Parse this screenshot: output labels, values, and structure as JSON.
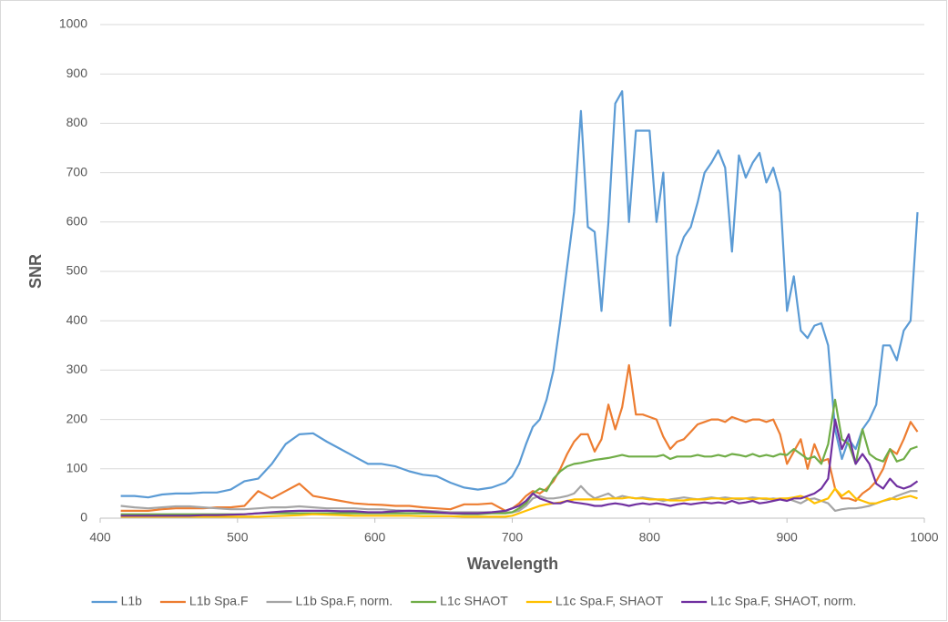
{
  "chart_data": {
    "type": "line",
    "xlabel": "Wavelength",
    "ylabel": "SNR",
    "x": [
      415,
      425,
      435,
      445,
      455,
      465,
      475,
      485,
      495,
      505,
      515,
      525,
      535,
      545,
      555,
      565,
      575,
      585,
      595,
      605,
      615,
      625,
      635,
      645,
      655,
      665,
      675,
      685,
      695,
      700,
      705,
      710,
      715,
      720,
      725,
      730,
      735,
      740,
      745,
      750,
      755,
      760,
      765,
      770,
      775,
      780,
      785,
      790,
      795,
      800,
      805,
      810,
      815,
      820,
      825,
      830,
      835,
      840,
      845,
      850,
      855,
      860,
      865,
      870,
      875,
      880,
      885,
      890,
      895,
      900,
      905,
      910,
      915,
      920,
      925,
      930,
      935,
      940,
      945,
      950,
      955,
      960,
      965,
      970,
      975,
      980,
      985,
      990,
      995
    ],
    "series": [
      {
        "name": "L1b",
        "color": "#5b9bd5",
        "values": [
          45,
          45,
          42,
          48,
          50,
          50,
          52,
          52,
          58,
          75,
          80,
          110,
          150,
          170,
          172,
          155,
          140,
          125,
          110,
          110,
          105,
          95,
          88,
          85,
          72,
          62,
          58,
          62,
          72,
          85,
          110,
          150,
          185,
          200,
          240,
          300,
          400,
          510,
          620,
          825,
          590,
          580,
          420,
          600,
          840,
          865,
          600,
          785,
          785,
          785,
          600,
          700,
          390,
          530,
          570,
          590,
          640,
          700,
          720,
          745,
          710,
          540,
          735,
          690,
          720,
          740,
          680,
          710,
          660,
          420,
          490,
          380,
          365,
          390,
          395,
          350,
          180,
          120,
          160,
          140,
          180,
          200,
          230,
          350,
          350,
          320,
          380,
          400,
          620
        ]
      },
      {
        "name": "L1b Spa.F",
        "color": "#ed7d31",
        "values": [
          15,
          15,
          15,
          18,
          20,
          20,
          20,
          22,
          22,
          25,
          55,
          40,
          55,
          70,
          45,
          40,
          35,
          30,
          28,
          27,
          25,
          25,
          22,
          20,
          18,
          28,
          28,
          30,
          15,
          20,
          30,
          45,
          55,
          50,
          60,
          75,
          100,
          130,
          155,
          170,
          170,
          135,
          160,
          230,
          180,
          225,
          310,
          210,
          210,
          205,
          200,
          165,
          140,
          155,
          160,
          175,
          190,
          195,
          200,
          200,
          195,
          205,
          200,
          195,
          200,
          200,
          195,
          200,
          170,
          110,
          135,
          160,
          100,
          150,
          115,
          120,
          60,
          40,
          40,
          35,
          50,
          60,
          75,
          100,
          140,
          130,
          160,
          195,
          175
        ]
      },
      {
        "name": "L1b Spa.F, norm.",
        "color": "#a5a5a5",
        "values": [
          25,
          22,
          20,
          22,
          24,
          24,
          22,
          20,
          18,
          18,
          20,
          22,
          22,
          24,
          22,
          20,
          20,
          20,
          18,
          18,
          16,
          15,
          15,
          14,
          12,
          12,
          12,
          12,
          12,
          12,
          15,
          25,
          40,
          45,
          40,
          40,
          42,
          45,
          50,
          65,
          50,
          40,
          45,
          50,
          40,
          45,
          42,
          40,
          42,
          40,
          38,
          35,
          38,
          40,
          42,
          40,
          38,
          40,
          42,
          40,
          42,
          40,
          38,
          40,
          42,
          40,
          38,
          40,
          38,
          40,
          35,
          30,
          38,
          40,
          35,
          30,
          15,
          18,
          20,
          20,
          22,
          25,
          30,
          35,
          38,
          45,
          50,
          55,
          55
        ]
      },
      {
        "name": "L1c SHAOT",
        "color": "#70ad47",
        "values": [
          8,
          8,
          8,
          8,
          8,
          8,
          8,
          8,
          8,
          8,
          10,
          10,
          10,
          10,
          10,
          10,
          10,
          10,
          10,
          10,
          10,
          10,
          10,
          10,
          10,
          8,
          8,
          10,
          10,
          12,
          20,
          30,
          50,
          60,
          55,
          80,
          95,
          105,
          110,
          112,
          115,
          118,
          120,
          122,
          125,
          128,
          125,
          125,
          125,
          125,
          125,
          128,
          120,
          125,
          125,
          125,
          128,
          125,
          125,
          128,
          125,
          130,
          128,
          125,
          130,
          125,
          128,
          125,
          130,
          128,
          140,
          130,
          120,
          125,
          110,
          150,
          240,
          160,
          150,
          110,
          180,
          130,
          120,
          115,
          140,
          115,
          120,
          140,
          145
        ]
      },
      {
        "name": "L1c Spa.F, SHAOT",
        "color": "#ffc000",
        "values": [
          3,
          3,
          3,
          3,
          3,
          3,
          3,
          3,
          3,
          3,
          3,
          4,
          5,
          6,
          8,
          7,
          6,
          5,
          5,
          5,
          5,
          5,
          4,
          4,
          4,
          3,
          3,
          3,
          3,
          5,
          10,
          15,
          20,
          25,
          28,
          30,
          32,
          35,
          38,
          38,
          38,
          38,
          38,
          40,
          40,
          40,
          42,
          40,
          40,
          38,
          38,
          38,
          36,
          36,
          36,
          38,
          38,
          38,
          40,
          40,
          38,
          40,
          40,
          40,
          38,
          40,
          40,
          38,
          40,
          40,
          42,
          45,
          40,
          30,
          35,
          40,
          60,
          45,
          55,
          40,
          35,
          30,
          30,
          35,
          40,
          38,
          42,
          45,
          40
        ]
      },
      {
        "name": "L1c Spa.F, SHAOT, norm.",
        "color": "#7030a0",
        "values": [
          5,
          5,
          5,
          5,
          5,
          5,
          6,
          6,
          7,
          8,
          10,
          12,
          14,
          15,
          15,
          15,
          14,
          14,
          12,
          12,
          14,
          15,
          14,
          12,
          10,
          10,
          10,
          12,
          15,
          20,
          25,
          35,
          50,
          40,
          35,
          30,
          30,
          35,
          32,
          30,
          28,
          25,
          25,
          28,
          30,
          28,
          25,
          28,
          30,
          28,
          30,
          28,
          25,
          28,
          30,
          28,
          30,
          32,
          30,
          32,
          30,
          35,
          30,
          32,
          35,
          30,
          32,
          35,
          38,
          35,
          40,
          40,
          45,
          50,
          60,
          80,
          200,
          140,
          170,
          110,
          130,
          110,
          70,
          60,
          80,
          65,
          60,
          65,
          75
        ]
      }
    ],
    "xlim": [
      400,
      1000
    ],
    "xticks": [
      400,
      500,
      600,
      700,
      800,
      900,
      1000
    ],
    "ylim": [
      0,
      1000
    ],
    "yticks": [
      0,
      100,
      200,
      300,
      400,
      500,
      600,
      700,
      800,
      900,
      1000
    ],
    "grid": true,
    "legend": "bottom"
  }
}
